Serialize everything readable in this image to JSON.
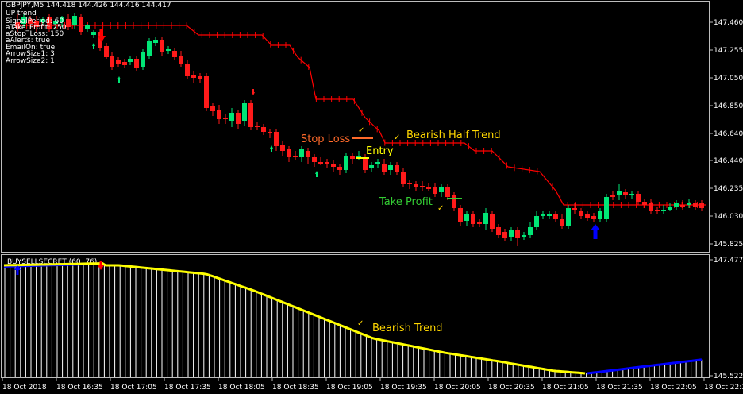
{
  "header": {
    "symbol_line": "GBPJPY,M5  144.418 144.426 144.416 144.417",
    "indicator_name": "UP trend",
    "params": [
      "SignalPeriod: 60",
      "aTake_Profit: 250",
      "aStop_Loss: 150",
      "aAlerts: true",
      "EmailOn: true",
      "ArrowSize1: 3",
      "ArrowSize2: 1"
    ]
  },
  "main_axis_labels": [
    "147.460",
    "147.255",
    "147.050",
    "146.850",
    "146.640",
    "146.440",
    "146.235",
    "146.030",
    "145.825"
  ],
  "sub_window": {
    "title": "BUYSELLSECRET (60, 76)",
    "axis_top": "147.4778",
    "axis_bottom": "145.5225"
  },
  "time_labels": [
    "18 Oct 2018",
    "18 Oct 16:35",
    "18 Oct 17:05",
    "18 Oct 17:35",
    "18 Oct 18:05",
    "18 Oct 18:35",
    "18 Oct 19:05",
    "18 Oct 19:35",
    "18 Oct 20:05",
    "18 Oct 20:35",
    "18 Oct 21:05",
    "18 Oct 21:35",
    "18 Oct 22:05",
    "18 Oct 22:35"
  ],
  "annotations": {
    "stop_loss": "Stop Loss",
    "bearish_half_trend": "Bearish Half Trend",
    "entry": "Entry",
    "take_profit": "Take Profit",
    "bearish_trend": "Bearish Trend"
  },
  "colors": {
    "background": "#000000",
    "bull_candle": "#00e676",
    "bear_candle": "#ff1a1a",
    "half_trend_line": "#ff0000",
    "trend_line_bearish": "#ffff00",
    "trend_line_bullish": "#0000ff",
    "histogram": "#ffffff",
    "stop_loss_text": "#ff6a2a",
    "half_trend_text": "#ffd700",
    "entry_text": "#ffff00",
    "take_profit_text": "#33cc33",
    "bearish_trend_text": "#ffd700",
    "buy_arrow": "#0000ff",
    "sell_arrow": "#ff0000"
  },
  "icons": {
    "buy_arrow": "blue-up-arrow-icon",
    "sell_arrow": "red-down-arrow-icon",
    "check_marks": "check-icon"
  }
}
